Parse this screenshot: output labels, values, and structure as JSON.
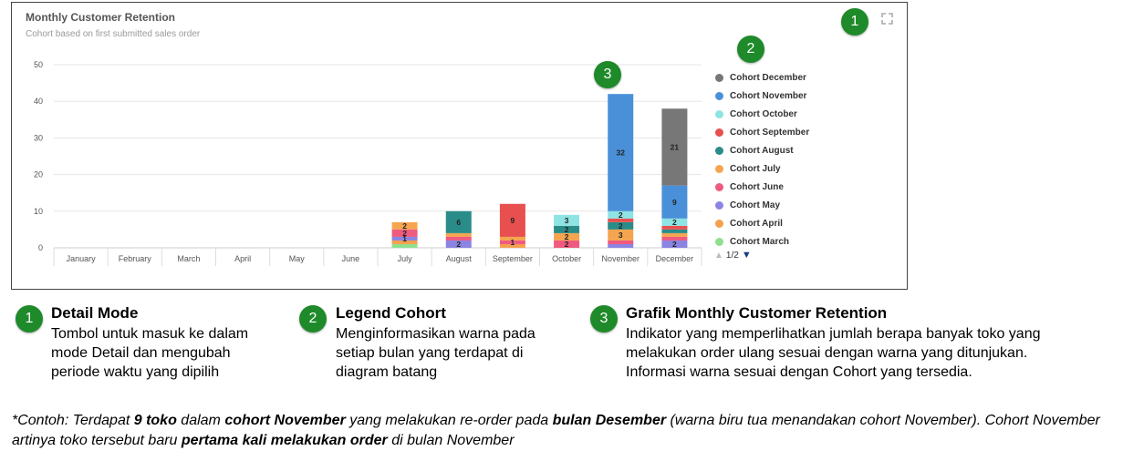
{
  "panel": {
    "title": "Monthly Customer Retention",
    "subtitle": "Cohort based on first submitted sales order"
  },
  "badges": {
    "one": "1",
    "two": "2",
    "three": "3"
  },
  "icons": {
    "expand": "expand-icon",
    "pager_up": "triangle-up-icon",
    "pager_down": "triangle-down-icon"
  },
  "legend": {
    "items": [
      {
        "label": "Cohort December",
        "color": "#777777"
      },
      {
        "label": "Cohort November",
        "color": "#4a90d9"
      },
      {
        "label": "Cohort October",
        "color": "#8ee3e3"
      },
      {
        "label": "Cohort September",
        "color": "#e85050"
      },
      {
        "label": "Cohort August",
        "color": "#2a8c88"
      },
      {
        "label": "Cohort July",
        "color": "#f5a550"
      },
      {
        "label": "Cohort June",
        "color": "#ef5a7f"
      },
      {
        "label": "Cohort May",
        "color": "#8a84e2"
      },
      {
        "label": "Cohort April",
        "color": "#f4a04e"
      },
      {
        "label": "Cohort March",
        "color": "#8ee08e"
      }
    ],
    "pager": "1/2"
  },
  "chart_data": {
    "type": "bar",
    "stacked": true,
    "categories": [
      "January",
      "February",
      "March",
      "April",
      "May",
      "June",
      "July",
      "August",
      "September",
      "October",
      "November",
      "December"
    ],
    "ylim": [
      0,
      50
    ],
    "yticks": [
      0,
      10,
      20,
      30,
      40,
      50
    ],
    "grid": true,
    "legend_position": "right",
    "series": [
      {
        "name": "Cohort March",
        "color": "#8ee08e",
        "values": [
          0,
          0,
          0,
          0,
          0,
          0,
          1,
          0,
          0,
          0,
          0,
          0
        ]
      },
      {
        "name": "Cohort April",
        "color": "#f4a04e",
        "values": [
          0,
          0,
          0,
          0,
          0,
          0,
          1,
          0,
          1,
          0,
          0,
          0
        ]
      },
      {
        "name": "Cohort May",
        "color": "#8a84e2",
        "values": [
          0,
          0,
          0,
          0,
          0,
          0,
          1,
          2,
          0,
          0,
          1,
          2
        ]
      },
      {
        "name": "Cohort June",
        "color": "#ef5a7f",
        "values": [
          0,
          0,
          0,
          0,
          0,
          0,
          2,
          1,
          1,
          2,
          1,
          1
        ]
      },
      {
        "name": "Cohort July",
        "color": "#f5a550",
        "values": [
          0,
          0,
          0,
          0,
          0,
          0,
          2,
          1,
          1,
          2,
          3,
          1
        ]
      },
      {
        "name": "Cohort August",
        "color": "#2a8c88",
        "values": [
          0,
          0,
          0,
          0,
          0,
          0,
          0,
          6,
          0,
          2,
          2,
          1
        ]
      },
      {
        "name": "Cohort September",
        "color": "#e85050",
        "values": [
          0,
          0,
          0,
          0,
          0,
          0,
          0,
          0,
          9,
          0,
          1,
          1
        ]
      },
      {
        "name": "Cohort October",
        "color": "#8ee3e3",
        "values": [
          0,
          0,
          0,
          0,
          0,
          0,
          0,
          0,
          0,
          3,
          2,
          2
        ]
      },
      {
        "name": "Cohort November",
        "color": "#4a90d9",
        "values": [
          0,
          0,
          0,
          0,
          0,
          0,
          0,
          0,
          0,
          0,
          32,
          9
        ]
      },
      {
        "name": "Cohort December",
        "color": "#777777",
        "values": [
          0,
          0,
          0,
          0,
          0,
          0,
          0,
          0,
          0,
          0,
          0,
          21
        ]
      }
    ],
    "data_labels_min": 1
  },
  "descriptions": [
    {
      "number": "1",
      "title": "Detail Mode",
      "lines": [
        "Tombol untuk masuk ke dalam",
        "mode Detail dan mengubah",
        "periode waktu yang dipilih"
      ]
    },
    {
      "number": "2",
      "title": "Legend Cohort",
      "lines": [
        "Menginformasikan warna pada",
        "setiap bulan yang terdapat di",
        "diagram batang"
      ]
    },
    {
      "number": "3",
      "title": "Grafik Monthly Customer Retention",
      "lines": [
        "Indikator yang memperlihatkan jumlah berapa banyak toko yang",
        "melakukan order ulang sesuai dengan warna yang ditunjukan.",
        "Informasi warna sesuai dengan Cohort yang tersedia."
      ]
    }
  ],
  "note": {
    "parts": [
      {
        "text": "*Contoh: Terdapat ",
        "bold": false
      },
      {
        "text": "9 toko",
        "bold": true
      },
      {
        "text": " dalam ",
        "bold": false
      },
      {
        "text": "cohort November",
        "bold": true
      },
      {
        "text": " yang melakukan re-order pada ",
        "bold": false
      },
      {
        "text": "bulan Desember",
        "bold": true
      },
      {
        "text": " (warna biru tua menandakan cohort November). Cohort November artinya toko tersebut baru ",
        "bold": false
      },
      {
        "text": "pertama kali melakukan order",
        "bold": true
      },
      {
        "text": " di bulan November",
        "bold": false
      }
    ]
  }
}
